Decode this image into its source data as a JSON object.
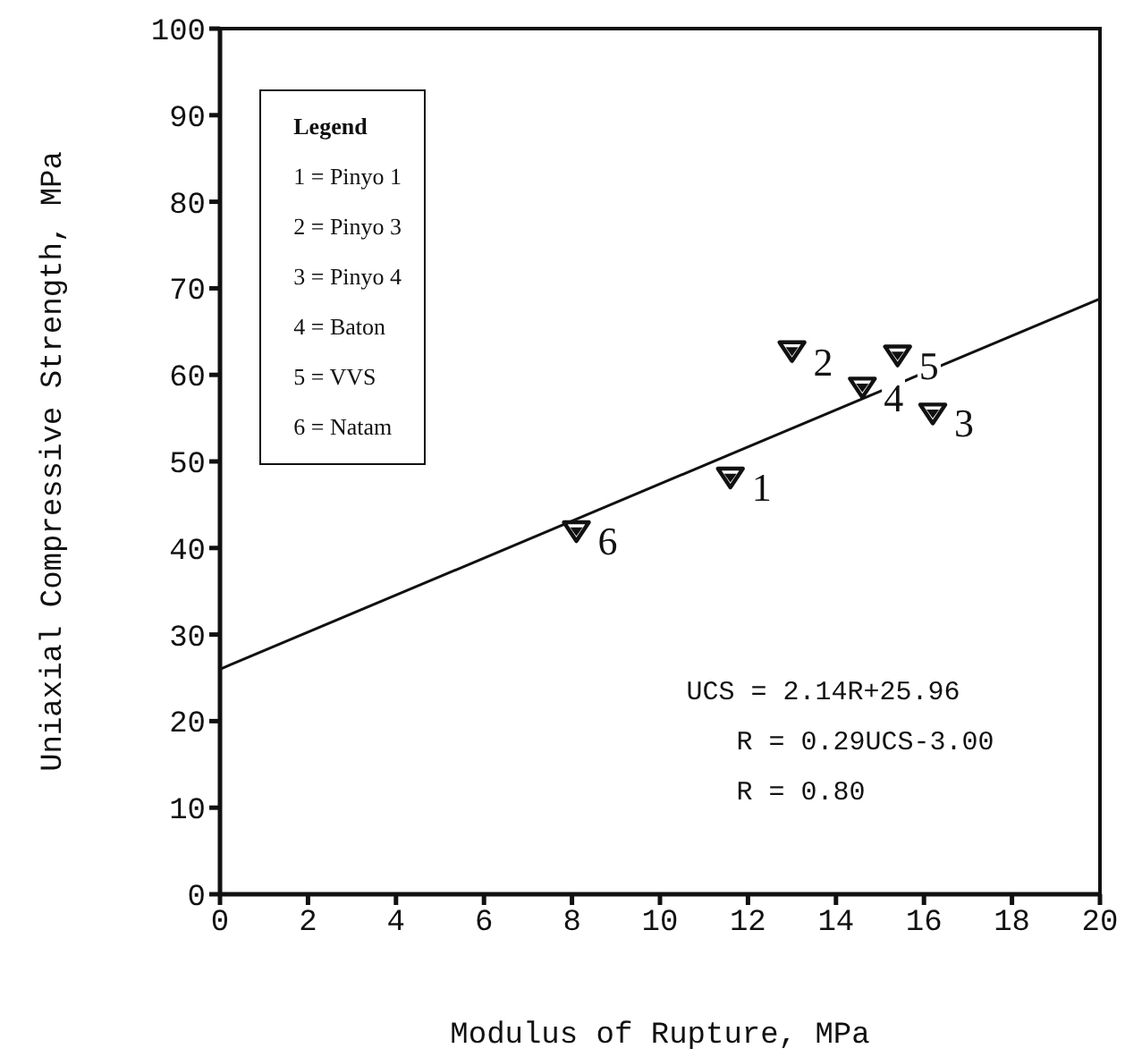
{
  "chart_data": {
    "type": "scatter",
    "xlabel": "Modulus of Rupture, MPa",
    "ylabel": "Uniaxial Compressive Strength, MPa",
    "xlim": [
      0,
      20
    ],
    "xticks": [
      0,
      2,
      4,
      6,
      8,
      10,
      12,
      14,
      16,
      18,
      20
    ],
    "ylim": [
      0,
      100
    ],
    "yticks": [
      0,
      10,
      20,
      30,
      40,
      50,
      60,
      70,
      80,
      90,
      100
    ],
    "grid": false,
    "legend": false,
    "series": [
      {
        "color": "#111111",
        "marker": "triangle",
        "x": [
          11.6,
          13.0,
          16.2,
          14.6,
          15.4,
          8.1
        ],
        "values": [
          48.3,
          62.9,
          55.7,
          58.7,
          62.4,
          42.1
        ]
      },
      {
        "type": "line",
        "color": "#111111",
        "marker": "none",
        "line_style": "solid",
        "x": [
          0,
          20
        ],
        "values": [
          26,
          68.8
        ]
      }
    ],
    "annotations": [
      "Legend",
      "1 = Pinyo 1",
      "2 = Pinyo 3",
      "3 = Pinyo 4",
      "4 = Baton",
      "5 = VVS",
      "6 = Natam",
      "UCS = 2.14R+25.96",
      "R = 0.29UCS-3.00",
      "R = 0.80",
      {
        "text": "1",
        "x": 11.6,
        "y": 48.3
      },
      {
        "text": "2",
        "x": 13.0,
        "y": 62.9
      },
      {
        "text": "3",
        "x": 16.2,
        "y": 55.7
      },
      {
        "text": "4",
        "x": 14.6,
        "y": 58.7
      },
      {
        "text": "5",
        "x": 15.4,
        "y": 62.4
      },
      {
        "text": "6",
        "x": 8.1,
        "y": 42.1
      }
    ]
  }
}
